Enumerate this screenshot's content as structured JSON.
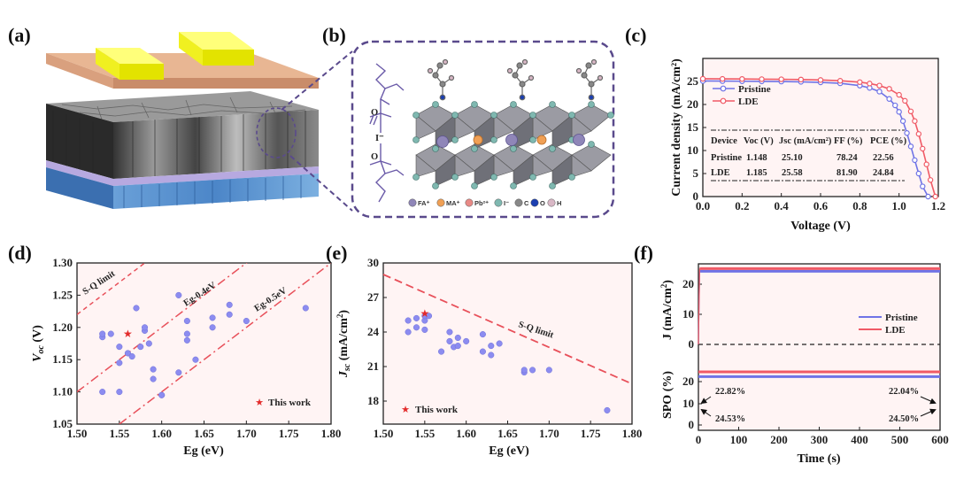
{
  "panels": {
    "a": "(a)",
    "b": "(b)",
    "c": "(c)",
    "d": "(d)",
    "e": "(e)",
    "f": "(f)"
  },
  "schematic_b": {
    "chain_label": "I⁻",
    "legend": [
      "FA⁺",
      "MA⁺",
      "Pb²⁺",
      "I⁻",
      "C",
      "O",
      "H"
    ],
    "legend_colors": [
      "#8f86b8",
      "#f0a055",
      "#e88a86",
      "#7fb8b0",
      "#888888",
      "#1b3fb0",
      "#d9b8c6"
    ]
  },
  "colors": {
    "pristine": "#6f73e6",
    "lde": "#f05a66",
    "dashed_pink": "#e8505a",
    "points": "#8c8cf0",
    "star": "#e32b2b",
    "plot_bg": "#fff4f4"
  },
  "chart_data": [
    {
      "id": "c",
      "type": "line",
      "xlabel": "Voltage (V)",
      "ylabel": "Current density (mA/cm²)",
      "xlim": [
        0.0,
        1.2
      ],
      "ylim": [
        0,
        30
      ],
      "xticks": [
        "0.0",
        "0.2",
        "0.4",
        "0.6",
        "0.8",
        "1.0",
        "1.2"
      ],
      "yticks": [
        "0",
        "5",
        "10",
        "15",
        "20",
        "25"
      ],
      "series": [
        {
          "name": "Pristine",
          "color": "#6f73e6",
          "marker": "o",
          "x": [
            0.0,
            0.1,
            0.2,
            0.3,
            0.4,
            0.5,
            0.6,
            0.7,
            0.8,
            0.85,
            0.9,
            0.95,
            0.98,
            1.0,
            1.02,
            1.04,
            1.06,
            1.08,
            1.1,
            1.12,
            1.148
          ],
          "y": [
            25.1,
            25.08,
            25.05,
            25.02,
            24.98,
            24.92,
            24.8,
            24.6,
            24.1,
            23.6,
            22.8,
            21.2,
            19.8,
            18.4,
            16.4,
            13.8,
            10.9,
            7.9,
            5.0,
            2.2,
            0
          ]
        },
        {
          "name": "LDE",
          "color": "#f05a66",
          "marker": "o",
          "x": [
            0.0,
            0.1,
            0.2,
            0.3,
            0.4,
            0.5,
            0.6,
            0.7,
            0.8,
            0.85,
            0.9,
            0.95,
            1.0,
            1.03,
            1.06,
            1.08,
            1.1,
            1.12,
            1.14,
            1.16,
            1.185
          ],
          "y": [
            25.58,
            25.56,
            25.54,
            25.5,
            25.47,
            25.42,
            25.32,
            25.15,
            24.85,
            24.55,
            24.1,
            23.4,
            22.1,
            20.8,
            18.5,
            16.4,
            13.6,
            10.4,
            7.0,
            3.6,
            0
          ]
        }
      ],
      "table": {
        "headers": [
          "Device",
          "Voc (V)",
          "Jsc (mA/cm²)",
          "FF (%)",
          "PCE (%)"
        ],
        "rows": [
          [
            "Pristine",
            "1.148",
            "25.10",
            "78.24",
            "22.56"
          ],
          [
            "LDE",
            "1.185",
            "25.58",
            "81.90",
            "24.84"
          ]
        ]
      },
      "legend": [
        "Pristine",
        "LDE"
      ]
    },
    {
      "id": "d",
      "type": "scatter",
      "xlabel": "Eg (eV)",
      "ylabel": "Voc (V)",
      "xlim": [
        1.5,
        1.8
      ],
      "ylim": [
        1.05,
        1.3
      ],
      "xticks": [
        "1.50",
        "1.55",
        "1.60",
        "1.65",
        "1.70",
        "1.75",
        "1.80"
      ],
      "yticks": [
        "1.05",
        "1.10",
        "1.15",
        "1.20",
        "1.25",
        "1.30"
      ],
      "points": [
        [
          1.53,
          1.185
        ],
        [
          1.53,
          1.19
        ],
        [
          1.54,
          1.19
        ],
        [
          1.53,
          1.1
        ],
        [
          1.55,
          1.145
        ],
        [
          1.55,
          1.1
        ],
        [
          1.55,
          1.17
        ],
        [
          1.56,
          1.16
        ],
        [
          1.565,
          1.155
        ],
        [
          1.57,
          1.23
        ],
        [
          1.58,
          1.195
        ],
        [
          1.575,
          1.17
        ],
        [
          1.58,
          1.2
        ],
        [
          1.585,
          1.175
        ],
        [
          1.59,
          1.12
        ],
        [
          1.59,
          1.135
        ],
        [
          1.6,
          1.095
        ],
        [
          1.6,
          1.095
        ],
        [
          1.62,
          1.25
        ],
        [
          1.62,
          1.13
        ],
        [
          1.63,
          1.21
        ],
        [
          1.63,
          1.19
        ],
        [
          1.63,
          1.18
        ],
        [
          1.64,
          1.15
        ],
        [
          1.66,
          1.2
        ],
        [
          1.66,
          1.215
        ],
        [
          1.68,
          1.22
        ],
        [
          1.68,
          1.235
        ],
        [
          1.7,
          1.21
        ],
        [
          1.77,
          1.23
        ]
      ],
      "star": [
        1.56,
        1.19
      ],
      "lines": [
        "S-Q limit",
        "Eg-0.4eV",
        "Eg-0.5eV"
      ],
      "legend": [
        "This work"
      ]
    },
    {
      "id": "e",
      "type": "scatter",
      "xlabel": "Eg (eV)",
      "ylabel": "Jsc (mA/cm²)",
      "xlim": [
        1.5,
        1.8
      ],
      "ylim": [
        16,
        30
      ],
      "xticks": [
        "1.50",
        "1.55",
        "1.60",
        "1.65",
        "1.70",
        "1.75",
        "1.80"
      ],
      "yticks": [
        "18",
        "21",
        "24",
        "27",
        "30"
      ],
      "points": [
        [
          1.53,
          24.0
        ],
        [
          1.53,
          25.0
        ],
        [
          1.54,
          25.2
        ],
        [
          1.54,
          24.4
        ],
        [
          1.55,
          24.2
        ],
        [
          1.55,
          25.0
        ],
        [
          1.55,
          25.4
        ],
        [
          1.555,
          25.4
        ],
        [
          1.57,
          22.3
        ],
        [
          1.58,
          24.0
        ],
        [
          1.58,
          23.2
        ],
        [
          1.585,
          22.7
        ],
        [
          1.59,
          23.5
        ],
        [
          1.59,
          22.8
        ],
        [
          1.6,
          23.2
        ],
        [
          1.62,
          23.8
        ],
        [
          1.62,
          22.3
        ],
        [
          1.63,
          22.8
        ],
        [
          1.63,
          22.0
        ],
        [
          1.64,
          23.0
        ],
        [
          1.67,
          20.5
        ],
        [
          1.67,
          20.7
        ],
        [
          1.68,
          20.7
        ],
        [
          1.7,
          20.7
        ],
        [
          1.77,
          17.2
        ]
      ],
      "star": [
        1.55,
        25.6
      ],
      "lines": [
        "S-Q limit"
      ],
      "legend": [
        "This work"
      ]
    },
    {
      "id": "f",
      "type": "line",
      "xlabel": "Time (s)",
      "xlim": [
        0,
        600
      ],
      "xticks": [
        "0",
        "100",
        "200",
        "300",
        "400",
        "500",
        "600"
      ],
      "top": {
        "ylabel": "J (mA/cm²)",
        "yticks": [
          "0",
          "10",
          "20"
        ],
        "ylim": [
          -8,
          28
        ],
        "series": [
          {
            "name": "Pristine",
            "value": 24.3
          },
          {
            "name": "LDE",
            "value": 25.2
          }
        ]
      },
      "bottom": {
        "ylabel": "SPO (%)",
        "yticks": [
          "0",
          "10",
          "20"
        ],
        "ylim": [
          -8,
          28
        ],
        "series": [
          {
            "name": "Pristine",
            "value": 22.3
          },
          {
            "name": "LDE",
            "value": 24.5
          }
        ]
      },
      "annotations": [
        "22.82%",
        "24.53%",
        "22.04%",
        "24.50%"
      ],
      "legend": [
        "Pristine",
        "LDE"
      ]
    }
  ]
}
